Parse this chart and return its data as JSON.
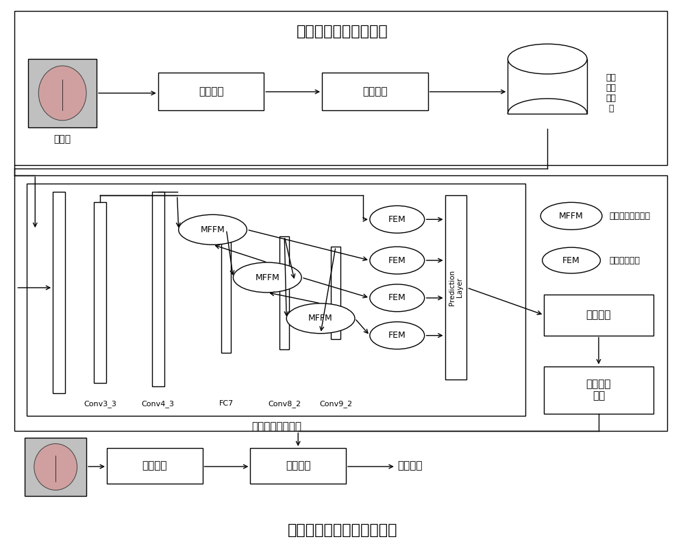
{
  "title_top": "齿痕检测数据集的构建",
  "title_bottom": "齿痕检测网络的设计与训练",
  "bg_color": "#ffffff",
  "top_section": {
    "tongue_label": "舌图像",
    "box1_label": "舌体分割",
    "box2_label": "齿痕标注",
    "db_label": "齿痕\n检测\n数据\n集"
  },
  "middle_section": {
    "network_label": "齿痕检测网络模型",
    "conv_labels": [
      "Conv3_3",
      "Conv4_3",
      "FC7",
      "Conv8_2",
      "Conv9_2"
    ],
    "prediction_label": "Prediction\nLayer",
    "mffm_label": "MFFM",
    "fem_label": "FEM",
    "detect_label": "齿痕检测",
    "model_label": "齿痕检测\n模型",
    "legend_mffm": "多层特征融合模块",
    "legend_fem": "特征增强模块"
  },
  "bottom_section": {
    "box1_label": "舌体分割",
    "box2_label": "齿痕检测",
    "result_label": "检测结果"
  }
}
